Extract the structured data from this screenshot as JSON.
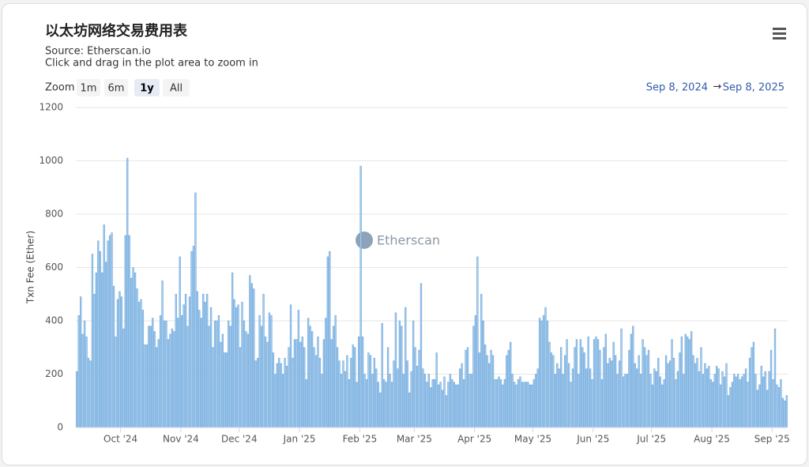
{
  "chart_data": {
    "type": "bar",
    "title": "以太坊网络交易费用表",
    "subtitle": "Source: Etherscan.io",
    "note": "Click and drag in the plot area to zoom in",
    "zoom": {
      "label": "Zoom",
      "buttons": [
        "1m",
        "6m",
        "1y",
        "All"
      ]
    },
    "range": {
      "from": "Sep 8, 2024",
      "separator": "→",
      "to": "Sep 8, 2025"
    },
    "watermark": "Etherscan",
    "y_label": "Txn Fee (Ether)",
    "color": "#a4cdf0",
    "edge_color": "#6fa6d8",
    "grid": true,
    "ylim": [
      0,
      1200
    ],
    "yticks": [
      0,
      200,
      400,
      600,
      800,
      1000,
      1200
    ],
    "xlim": [
      0,
      366
    ],
    "xticks": [
      {
        "value": 23,
        "label": "Oct '24"
      },
      {
        "value": 54,
        "label": "Nov '24"
      },
      {
        "value": 84,
        "label": "Dec '24"
      },
      {
        "value": 115,
        "label": "Jan '25"
      },
      {
        "value": 146,
        "label": "Feb '25"
      },
      {
        "value": 174,
        "label": "Mar '25"
      },
      {
        "value": 205,
        "label": "Apr '25"
      },
      {
        "value": 235,
        "label": "May '25"
      },
      {
        "value": 266,
        "label": "Jun '25"
      },
      {
        "value": 296,
        "label": "Jul '25"
      },
      {
        "value": 327,
        "label": "Aug '25"
      },
      {
        "value": 358,
        "label": "Sep '25"
      }
    ],
    "values": [
      210,
      420,
      490,
      350,
      400,
      340,
      260,
      250,
      650,
      500,
      580,
      700,
      660,
      580,
      760,
      620,
      700,
      720,
      730,
      530,
      340,
      480,
      510,
      490,
      370,
      720,
      1010,
      720,
      560,
      600,
      580,
      520,
      470,
      480,
      440,
      310,
      310,
      380,
      380,
      410,
      360,
      300,
      330,
      420,
      550,
      400,
      400,
      330,
      350,
      370,
      360,
      500,
      410,
      640,
      420,
      460,
      500,
      380,
      490,
      660,
      680,
      880,
      510,
      440,
      410,
      500,
      470,
      500,
      380,
      450,
      300,
      400,
      400,
      420,
      320,
      350,
      280,
      280,
      400,
      380,
      580,
      480,
      450,
      460,
      300,
      470,
      400,
      360,
      350,
      570,
      540,
      520,
      250,
      260,
      420,
      380,
      500,
      340,
      320,
      430,
      420,
      280,
      200,
      240,
      260,
      240,
      200,
      260,
      230,
      300,
      460,
      260,
      330,
      330,
      440,
      320,
      340,
      300,
      180,
      410,
      380,
      360,
      300,
      270,
      340,
      260,
      200,
      330,
      410,
      640,
      660,
      330,
      380,
      420,
      300,
      250,
      200,
      250,
      210,
      270,
      180,
      260,
      310,
      300,
      170,
      340,
      980,
      340,
      200,
      180,
      280,
      270,
      200,
      260,
      220,
      170,
      130,
      390,
      180,
      170,
      300,
      200,
      170,
      250,
      430,
      220,
      400,
      380,
      200,
      450,
      250,
      130,
      210,
      400,
      300,
      230,
      290,
      540,
      220,
      200,
      170,
      200,
      150,
      180,
      180,
      280,
      160,
      170,
      140,
      190,
      120,
      170,
      200,
      180,
      170,
      160,
      160,
      220,
      240,
      180,
      290,
      300,
      200,
      200,
      380,
      420,
      640,
      280,
      500,
      400,
      310,
      270,
      240,
      290,
      270,
      180,
      180,
      190,
      180,
      160,
      180,
      270,
      290,
      320,
      200,
      170,
      160,
      180,
      190,
      170,
      170,
      170,
      170,
      160,
      160,
      180,
      200,
      220,
      410,
      400,
      420,
      450,
      400,
      320,
      280,
      270,
      200,
      240,
      220,
      300,
      200,
      270,
      330,
      240,
      170,
      220,
      300,
      330,
      200,
      330,
      300,
      280,
      220,
      340,
      220,
      180,
      330,
      340,
      330,
      290,
      180,
      300,
      350,
      240,
      260,
      250,
      320,
      270,
      200,
      250,
      370,
      190,
      200,
      200,
      290,
      350,
      380,
      240,
      220,
      270,
      200,
      330,
      300,
      270,
      290,
      200,
      160,
      220,
      210,
      260,
      190,
      160,
      180,
      270,
      240,
      250,
      330,
      260,
      180,
      210,
      280,
      340,
      200,
      350,
      340,
      330,
      360,
      270,
      240,
      260,
      210,
      300,
      200,
      240,
      220,
      230,
      180,
      170,
      200,
      230,
      220,
      160,
      210,
      190,
      240,
      120,
      150,
      170,
      200,
      190,
      200,
      180,
      190,
      200,
      220,
      170,
      260,
      300,
      320,
      200,
      140,
      160,
      230,
      190,
      210,
      140,
      210,
      290,
      180,
      370,
      160,
      150,
      180,
      110,
      100,
      120
    ]
  }
}
